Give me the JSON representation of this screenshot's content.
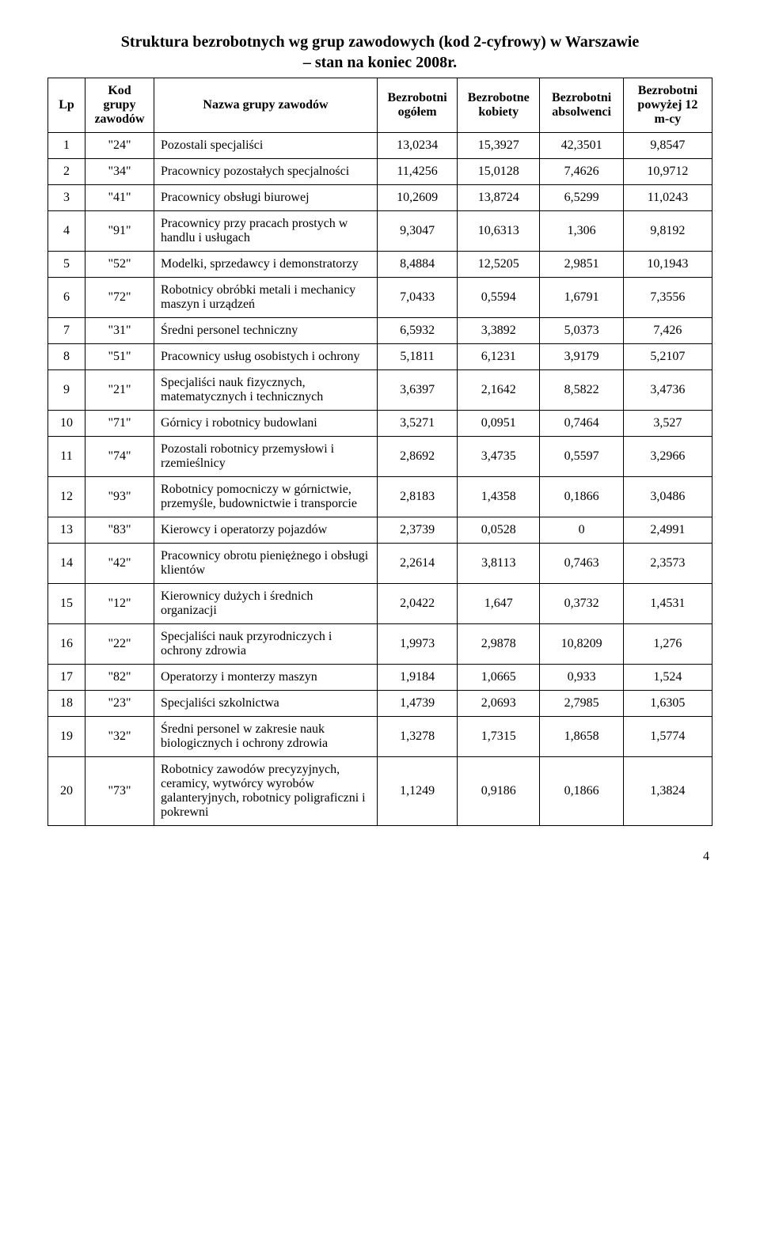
{
  "title_line1": "Struktura bezrobotnych wg grup zawodowych (kod 2-cyfrowy) w Warszawie",
  "title_line2": "– stan na koniec 2008r.",
  "page_number": "4",
  "headers": {
    "lp": "Lp",
    "kod": "Kod grupy zawodów",
    "nazwa": "Nazwa grupy zawodów",
    "ogolem": "Bezrobotni ogółem",
    "kobiety": "Bezrobotne kobiety",
    "absolwenci": "Bezrobotni absolwenci",
    "powyzej": "Bezrobotni powyżej 12 m-cy"
  },
  "rows": [
    {
      "lp": "1",
      "kod": "\"24\"",
      "nazwa": "Pozostali specjaliści",
      "c1": "13,0234",
      "c2": "15,3927",
      "c3": "42,3501",
      "c4": "9,8547"
    },
    {
      "lp": "2",
      "kod": "\"34\"",
      "nazwa": "Pracownicy pozostałych specjalności",
      "c1": "11,4256",
      "c2": "15,0128",
      "c3": "7,4626",
      "c4": "10,9712"
    },
    {
      "lp": "3",
      "kod": "\"41\"",
      "nazwa": "Pracownicy obsługi biurowej",
      "c1": "10,2609",
      "c2": "13,8724",
      "c3": "6,5299",
      "c4": "11,0243"
    },
    {
      "lp": "4",
      "kod": "\"91\"",
      "nazwa": "Pracownicy przy pracach prostych w handlu i usługach",
      "c1": "9,3047",
      "c2": "10,6313",
      "c3": "1,306",
      "c4": "9,8192"
    },
    {
      "lp": "5",
      "kod": "\"52\"",
      "nazwa": "Modelki, sprzedawcy i demonstratorzy",
      "c1": "8,4884",
      "c2": "12,5205",
      "c3": "2,9851",
      "c4": "10,1943"
    },
    {
      "lp": "6",
      "kod": "\"72\"",
      "nazwa": "Robotnicy obróbki metali i mechanicy maszyn i urządzeń",
      "c1": "7,0433",
      "c2": "0,5594",
      "c3": "1,6791",
      "c4": "7,3556"
    },
    {
      "lp": "7",
      "kod": "\"31\"",
      "nazwa": "Średni personel techniczny",
      "c1": "6,5932",
      "c2": "3,3892",
      "c3": "5,0373",
      "c4": "7,426"
    },
    {
      "lp": "8",
      "kod": "\"51\"",
      "nazwa": "Pracownicy usług osobistych i ochrony",
      "c1": "5,1811",
      "c2": "6,1231",
      "c3": "3,9179",
      "c4": "5,2107"
    },
    {
      "lp": "9",
      "kod": "\"21\"",
      "nazwa": "Specjaliści nauk fizycznych, matematycznych i technicznych",
      "c1": "3,6397",
      "c2": "2,1642",
      "c3": "8,5822",
      "c4": "3,4736"
    },
    {
      "lp": "10",
      "kod": "\"71\"",
      "nazwa": "Górnicy i robotnicy budowlani",
      "c1": "3,5271",
      "c2": "0,0951",
      "c3": "0,7464",
      "c4": "3,527"
    },
    {
      "lp": "11",
      "kod": "\"74\"",
      "nazwa": "Pozostali robotnicy przemysłowi i rzemieślnicy",
      "c1": "2,8692",
      "c2": "3,4735",
      "c3": "0,5597",
      "c4": "3,2966"
    },
    {
      "lp": "12",
      "kod": "\"93\"",
      "nazwa": "Robotnicy pomocniczy w górnictwie, przemyśle, budownictwie i transporcie",
      "c1": "2,8183",
      "c2": "1,4358",
      "c3": "0,1866",
      "c4": "3,0486"
    },
    {
      "lp": "13",
      "kod": "\"83\"",
      "nazwa": "Kierowcy i operatorzy pojazdów",
      "c1": "2,3739",
      "c2": "0,0528",
      "c3": "0",
      "c4": "2,4991"
    },
    {
      "lp": "14",
      "kod": "\"42\"",
      "nazwa": "Pracownicy obrotu pieniężnego i obsługi klientów",
      "c1": "2,2614",
      "c2": "3,8113",
      "c3": "0,7463",
      "c4": "2,3573"
    },
    {
      "lp": "15",
      "kod": "\"12\"",
      "nazwa": "Kierownicy dużych i średnich organizacji",
      "c1": "2,0422",
      "c2": "1,647",
      "c3": "0,3732",
      "c4": "1,4531"
    },
    {
      "lp": "16",
      "kod": "\"22\"",
      "nazwa": "Specjaliści nauk przyrodniczych i ochrony zdrowia",
      "c1": "1,9973",
      "c2": "2,9878",
      "c3": "10,8209",
      "c4": "1,276"
    },
    {
      "lp": "17",
      "kod": "\"82\"",
      "nazwa": "Operatorzy i monterzy maszyn",
      "c1": "1,9184",
      "c2": "1,0665",
      "c3": "0,933",
      "c4": "1,524"
    },
    {
      "lp": "18",
      "kod": "\"23\"",
      "nazwa": "Specjaliści szkolnictwa",
      "c1": "1,4739",
      "c2": "2,0693",
      "c3": "2,7985",
      "c4": "1,6305"
    },
    {
      "lp": "19",
      "kod": "\"32\"",
      "nazwa": "Średni personel w zakresie nauk biologicznych i ochrony zdrowia",
      "c1": "1,3278",
      "c2": "1,7315",
      "c3": "1,8658",
      "c4": "1,5774"
    },
    {
      "lp": "20",
      "kod": "\"73\"",
      "nazwa": "Robotnicy zawodów precyzyjnych, ceramicy, wytwórcy wyrobów galanteryjnych, robotnicy poligraficzni i pokrewni",
      "c1": "1,1249",
      "c2": "0,9186",
      "c3": "0,1866",
      "c4": "1,3824"
    }
  ]
}
